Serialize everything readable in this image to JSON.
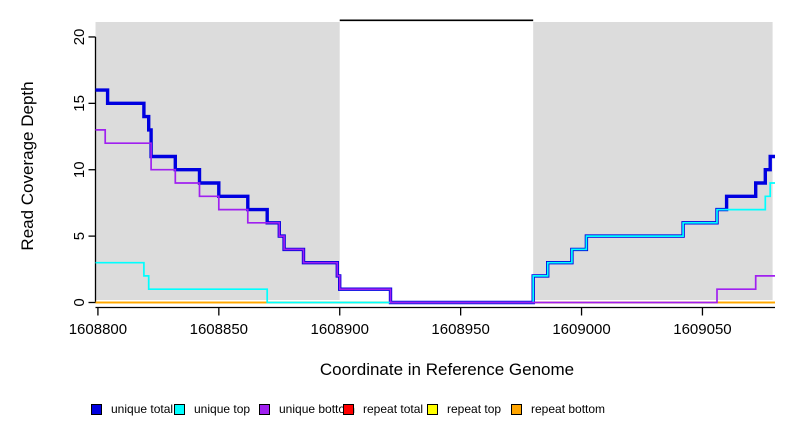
{
  "chart_data": {
    "type": "line",
    "subtype": "step-coverage-plot",
    "title": "",
    "xlabel": "Coordinate in Reference Genome",
    "ylabel": "Read Coverage Depth",
    "x_range": [
      1608799,
      1609080
    ],
    "y_range": [
      0,
      21
    ],
    "x_ticks": [
      "1608800",
      "1608850",
      "1608900",
      "1608950",
      "1609000",
      "1609050"
    ],
    "x_tick_values": [
      1608800,
      1608850,
      1608900,
      1608950,
      1609000,
      1609050
    ],
    "y_ticks": [
      "0",
      "5",
      "10",
      "15",
      "20"
    ],
    "y_tick_values": [
      0,
      5,
      10,
      15,
      20
    ],
    "grid": false,
    "legend_position": "bottom",
    "background_color": "#ffffff",
    "shaded_region_color": "#dcdcdc",
    "shaded_regions": [
      {
        "x0": 1608799,
        "x1": 1608900
      },
      {
        "x0": 1608980,
        "x1": 1609079
      }
    ],
    "gap_marker": {
      "x0": 1608900,
      "x1": 1608980,
      "color": "#000000",
      "note": "black line across top of uncovered white gap"
    },
    "series": [
      {
        "name": "unique total",
        "color": "#0000e0",
        "steps": [
          [
            1608799,
            16
          ],
          [
            1608804,
            15
          ],
          [
            1608819,
            14
          ],
          [
            1608821,
            13
          ],
          [
            1608822,
            11
          ],
          [
            1608832,
            10
          ],
          [
            1608842,
            9
          ],
          [
            1608850,
            8
          ],
          [
            1608862,
            7
          ],
          [
            1608870,
            6
          ],
          [
            1608875,
            5
          ],
          [
            1608877,
            4
          ],
          [
            1608885,
            3
          ],
          [
            1608899,
            2
          ],
          [
            1608900,
            1
          ],
          [
            1608921,
            0
          ],
          [
            1608980,
            2
          ],
          [
            1608986,
            3
          ],
          [
            1608996,
            4
          ],
          [
            1609002,
            5
          ],
          [
            1609042,
            6
          ],
          [
            1609056,
            7
          ],
          [
            1609060,
            8
          ],
          [
            1609072,
            9
          ],
          [
            1609076,
            10
          ],
          [
            1609078,
            11
          ]
        ]
      },
      {
        "name": "unique top",
        "color": "#00ffff",
        "steps": [
          [
            1608799,
            3
          ],
          [
            1608819,
            2
          ],
          [
            1608821,
            1
          ],
          [
            1608870,
            0
          ],
          [
            1608980,
            2
          ],
          [
            1608986,
            3
          ],
          [
            1608996,
            4
          ],
          [
            1609002,
            5
          ],
          [
            1609042,
            6
          ],
          [
            1609056,
            7
          ],
          [
            1609076,
            8
          ],
          [
            1609078,
            9
          ]
        ]
      },
      {
        "name": "unique bottom",
        "color": "#a020f0",
        "steps": [
          [
            1608799,
            13
          ],
          [
            1608803,
            12
          ],
          [
            1608822,
            10
          ],
          [
            1608832,
            9
          ],
          [
            1608842,
            8
          ],
          [
            1608850,
            7
          ],
          [
            1608862,
            6
          ],
          [
            1608875,
            5
          ],
          [
            1608877,
            4
          ],
          [
            1608885,
            3
          ],
          [
            1608899,
            2
          ],
          [
            1608900,
            1
          ],
          [
            1608921,
            0
          ],
          [
            1609056,
            1
          ],
          [
            1609072,
            2
          ]
        ]
      },
      {
        "name": "repeat total",
        "color": "#ff0000",
        "steps": [
          [
            1608799,
            0
          ]
        ]
      },
      {
        "name": "repeat top",
        "color": "#ffff00",
        "steps": [
          [
            1608799,
            0
          ]
        ]
      },
      {
        "name": "repeat bottom",
        "color": "#ffa500",
        "steps": [
          [
            1608799,
            0
          ]
        ]
      }
    ],
    "draw_order": [
      3,
      4,
      5,
      0,
      1,
      2
    ]
  }
}
